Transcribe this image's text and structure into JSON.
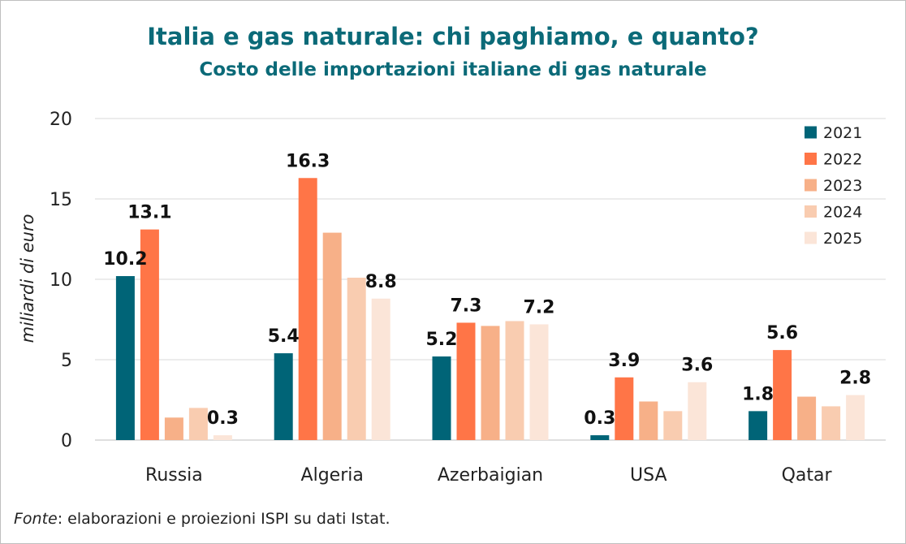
{
  "chart_data": {
    "type": "bar",
    "title": "Italia e gas naturale: chi paghiamo, e quanto?",
    "subtitle": "Costo delle importazioni  italiane di gas naturale",
    "xlabel": "",
    "ylabel": "miliardi di euro",
    "ylim": [
      0,
      20
    ],
    "yticks": [
      "0",
      "5",
      "10",
      "15",
      "20"
    ],
    "ytick_values": [
      0,
      5,
      10,
      15,
      20
    ],
    "grid": true,
    "legend_position": "top-right",
    "categories": [
      "Russia",
      "Algeria",
      "Azerbaigian",
      "USA",
      "Qatar"
    ],
    "series": [
      {
        "name": "2021",
        "color": "#006477",
        "values": [
          10.2,
          5.4,
          5.2,
          0.3,
          1.8
        ]
      },
      {
        "name": "2022",
        "color": "#ff7547",
        "values": [
          13.1,
          16.3,
          7.3,
          3.9,
          5.6
        ]
      },
      {
        "name": "2023",
        "color": "#f7b088",
        "values": [
          1.4,
          12.9,
          7.1,
          2.4,
          2.7
        ]
      },
      {
        "name": "2024",
        "color": "#f9ccb0",
        "values": [
          2.0,
          10.1,
          7.4,
          1.8,
          2.1
        ]
      },
      {
        "name": "2025",
        "color": "#fbe5d8",
        "values": [
          0.3,
          8.8,
          7.2,
          3.6,
          2.8
        ]
      }
    ],
    "data_labels": [
      {
        "category": "Russia",
        "series": "2021",
        "text": "10.2"
      },
      {
        "category": "Russia",
        "series": "2022",
        "text": "13.1"
      },
      {
        "category": "Russia",
        "series": "2025",
        "text": "0.3"
      },
      {
        "category": "Algeria",
        "series": "2021",
        "text": "5.4"
      },
      {
        "category": "Algeria",
        "series": "2022",
        "text": "16.3"
      },
      {
        "category": "Algeria",
        "series": "2025",
        "text": "8.8"
      },
      {
        "category": "Azerbaigian",
        "series": "2021",
        "text": "5.2"
      },
      {
        "category": "Azerbaigian",
        "series": "2022",
        "text": "7.3"
      },
      {
        "category": "Azerbaigian",
        "series": "2025",
        "text": "7.2"
      },
      {
        "category": "USA",
        "series": "2021",
        "text": "0.3"
      },
      {
        "category": "USA",
        "series": "2022",
        "text": "3.9"
      },
      {
        "category": "USA",
        "series": "2025",
        "text": "3.6"
      },
      {
        "category": "Qatar",
        "series": "2021",
        "text": "1.8"
      },
      {
        "category": "Qatar",
        "series": "2022",
        "text": "5.6"
      },
      {
        "category": "Qatar",
        "series": "2025",
        "text": "2.8"
      }
    ]
  },
  "source": {
    "label": "Fonte",
    "text": ": elaborazioni e proiezioni ISPI su dati Istat."
  }
}
